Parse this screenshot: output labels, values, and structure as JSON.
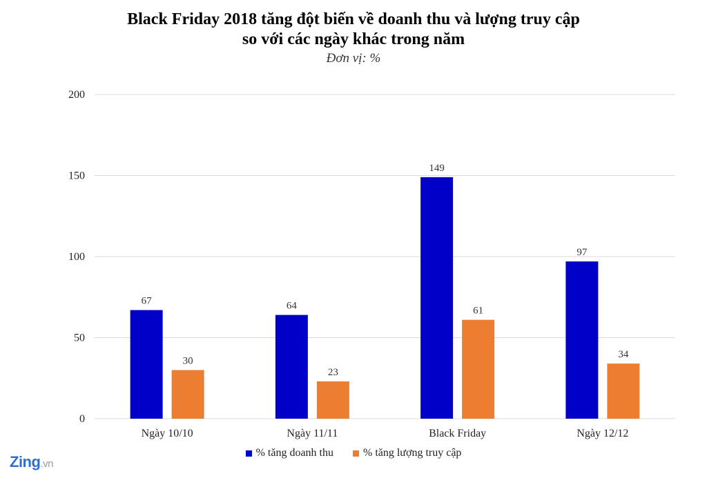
{
  "chart_data": {
    "type": "bar",
    "title_line1": "Black Friday 2018 tăng đột biến về doanh thu và lượng truy cập",
    "title_line2": "so với các ngày khác trong năm",
    "subtitle": "Đơn vị: %",
    "categories": [
      "Ngày 10/10",
      "Ngày 11/11",
      "Black Friday",
      "Ngày 12/12"
    ],
    "series": [
      {
        "name": "% tăng doanh thu",
        "values": [
          67,
          64,
          149,
          97
        ],
        "color": "#0000c8"
      },
      {
        "name": "% tăng lượng truy cập",
        "values": [
          30,
          23,
          61,
          34
        ],
        "color": "#ed7d31"
      }
    ],
    "ylim": [
      0,
      200
    ],
    "yticks": [
      0,
      50,
      100,
      150,
      200
    ],
    "grid": true,
    "legend_position": "bottom"
  },
  "watermark": {
    "brand": "Zing",
    "suffix": ".vn",
    "color": "#2e6fd1"
  }
}
